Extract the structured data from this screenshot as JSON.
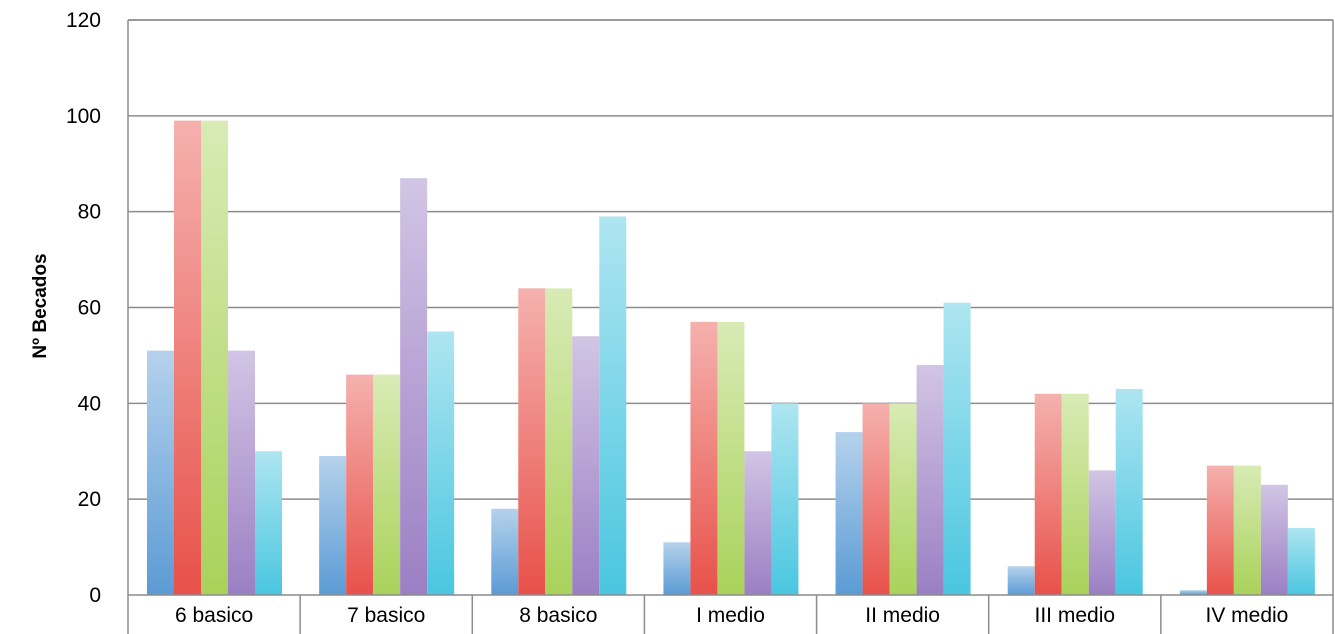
{
  "chart_data": {
    "type": "bar",
    "title": "",
    "xlabel": "",
    "ylabel": "Nº Becados",
    "ylim": [
      0,
      120
    ],
    "yticks": [
      0,
      20,
      40,
      60,
      80,
      100,
      120
    ],
    "grid": true,
    "legend": "none",
    "categories": [
      "6 basico",
      "7 basico",
      "8 basico",
      "I medio",
      "II medio",
      "III medio",
      "IV medio"
    ],
    "series": [
      {
        "values": [
          51,
          29,
          18,
          11,
          34,
          6,
          1
        ],
        "color": "#5b9bd5"
      },
      {
        "values": [
          99,
          46,
          64,
          57,
          40,
          42,
          27
        ],
        "color": "#e8514a"
      },
      {
        "values": [
          99,
          46,
          64,
          57,
          40,
          42,
          27
        ],
        "color": "#a9d25a"
      },
      {
        "values": [
          51,
          87,
          54,
          30,
          48,
          26,
          23
        ],
        "color": "#9b7fc4"
      },
      {
        "values": [
          30,
          55,
          79,
          40,
          61,
          43,
          14
        ],
        "color": "#4ac6e0"
      }
    ]
  }
}
